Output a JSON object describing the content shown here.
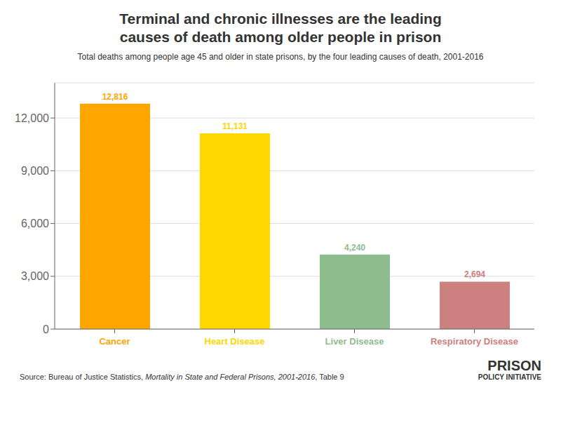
{
  "chart_data": {
    "type": "bar",
    "title": "Terminal and chronic illnesses are the leading\ncauses of death among older people in prison",
    "subtitle": "Total deaths among people age 45 and older in state prisons, by the four leading causes of death, 2001-2016",
    "categories": [
      "Cancer",
      "Heart Disease",
      "Liver Disease",
      "Respiratory Disease"
    ],
    "values": [
      12816,
      11131,
      4240,
      2694
    ],
    "value_labels": [
      "12,816",
      "11,131",
      "4,240",
      "2,694"
    ],
    "data_labels": true,
    "colors": [
      "#FFA500",
      "#FFD700",
      "#8FBC8F",
      "#CD8080"
    ],
    "ylim": [
      0,
      14000
    ],
    "yticks": [
      0,
      {
        "value": 3000,
        "label": "3,000"
      },
      {
        "value": 6000,
        "label": "6,000"
      },
      {
        "value": 9000,
        "label": "9,000"
      },
      {
        "value": 12000,
        "label": "12,000"
      }
    ],
    "grid": true,
    "annotations": [
      "Source: Bureau of Justice Statistics, ",
      "Mortality in State and Federal Prisons, 2001-2016",
      ", Table 9",
      "PRISON",
      "POLICY INITIATIVE"
    ]
  }
}
